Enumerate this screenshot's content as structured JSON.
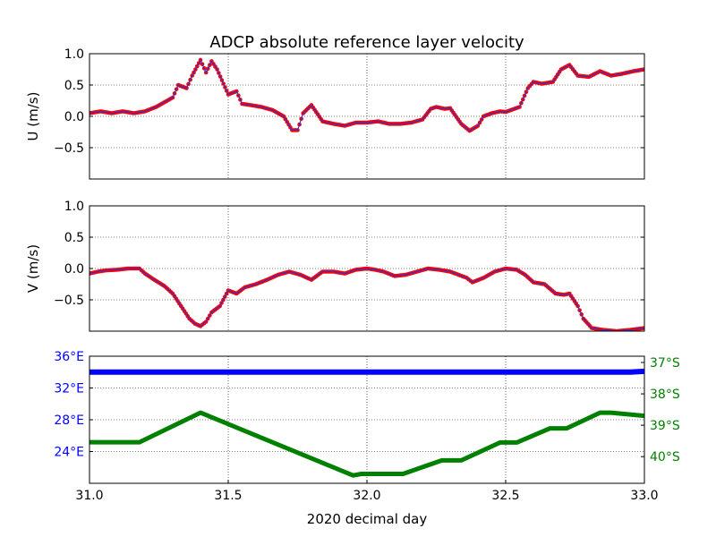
{
  "figure": {
    "title": "ADCP absolute reference layer velocity"
  },
  "chart_data": [
    {
      "id": "u_panel",
      "type": "scatter",
      "ylabel": "U (m/s)",
      "xlim": [
        31.0,
        33.0
      ],
      "ylim": [
        -1.0,
        1.0
      ],
      "yticks": [
        "1.0",
        "0.5",
        "0.0",
        "−0.5"
      ],
      "grid": true,
      "point_color": "#ff0000",
      "line_color": "#3333cc",
      "series": [
        {
          "x": [
            31.0,
            31.04,
            31.08,
            31.12,
            31.16,
            31.2,
            31.24,
            31.28,
            31.3,
            31.32,
            31.35,
            31.37,
            31.4,
            31.42,
            31.44,
            31.46,
            31.5,
            31.53,
            31.55,
            31.58,
            31.62,
            31.66,
            31.7,
            31.73,
            31.75,
            31.77,
            31.8,
            31.84,
            31.88,
            31.92,
            31.96,
            32.0,
            32.04,
            32.08,
            32.12,
            32.16,
            32.2,
            32.23,
            32.25,
            32.28,
            32.3,
            32.34,
            32.37,
            32.4,
            32.42,
            32.45,
            32.48,
            32.5,
            32.55,
            32.58,
            32.6,
            32.63,
            32.67,
            32.7,
            32.73,
            32.76,
            32.8,
            32.84,
            32.88,
            32.92,
            32.96,
            33.0
          ],
          "y": [
            0.05,
            0.08,
            0.05,
            0.08,
            0.05,
            0.08,
            0.15,
            0.25,
            0.3,
            0.5,
            0.45,
            0.65,
            0.9,
            0.7,
            0.88,
            0.75,
            0.35,
            0.4,
            0.2,
            0.18,
            0.15,
            0.1,
            0.0,
            -0.22,
            -0.22,
            0.05,
            0.18,
            -0.08,
            -0.12,
            -0.15,
            -0.1,
            -0.1,
            -0.08,
            -0.12,
            -0.12,
            -0.1,
            -0.05,
            0.12,
            0.15,
            0.12,
            0.13,
            -0.12,
            -0.23,
            -0.15,
            0.0,
            0.05,
            0.08,
            0.07,
            0.15,
            0.45,
            0.55,
            0.52,
            0.55,
            0.75,
            0.82,
            0.65,
            0.63,
            0.72,
            0.65,
            0.68,
            0.72,
            0.75
          ]
        }
      ]
    },
    {
      "id": "v_panel",
      "type": "scatter",
      "ylabel": "V (m/s)",
      "xlim": [
        31.0,
        33.0
      ],
      "ylim": [
        -1.0,
        1.0
      ],
      "yticks": [
        "1.0",
        "0.5",
        "0.0",
        "−0.5"
      ],
      "grid": true,
      "point_color": "#ff0000",
      "line_color": "#3333cc",
      "series": [
        {
          "x": [
            31.0,
            31.03,
            31.06,
            31.1,
            31.14,
            31.18,
            31.2,
            31.23,
            31.27,
            31.3,
            31.33,
            31.36,
            31.38,
            31.4,
            31.42,
            31.44,
            31.47,
            31.5,
            31.53,
            31.56,
            31.6,
            31.64,
            31.68,
            31.72,
            31.76,
            31.8,
            31.84,
            31.88,
            31.92,
            31.96,
            32.0,
            32.03,
            32.06,
            32.1,
            32.14,
            32.18,
            32.22,
            32.26,
            32.3,
            32.33,
            32.36,
            32.38,
            32.42,
            32.46,
            32.5,
            32.54,
            32.57,
            32.6,
            32.64,
            32.68,
            32.71,
            32.73,
            32.76,
            32.78,
            32.81,
            32.85,
            32.9,
            32.95,
            33.0
          ],
          "y": [
            -0.08,
            -0.05,
            -0.03,
            -0.02,
            0.0,
            0.0,
            -0.08,
            -0.17,
            -0.28,
            -0.4,
            -0.6,
            -0.8,
            -0.88,
            -0.92,
            -0.85,
            -0.7,
            -0.6,
            -0.35,
            -0.4,
            -0.3,
            -0.25,
            -0.18,
            -0.1,
            -0.05,
            -0.1,
            -0.18,
            -0.05,
            -0.05,
            -0.08,
            -0.02,
            0.0,
            -0.02,
            -0.05,
            -0.12,
            -0.1,
            -0.05,
            0.0,
            -0.02,
            -0.05,
            -0.1,
            -0.15,
            -0.22,
            -0.15,
            -0.05,
            0.0,
            -0.02,
            -0.1,
            -0.22,
            -0.25,
            -0.4,
            -0.42,
            -0.4,
            -0.6,
            -0.8,
            -0.95,
            -0.98,
            -1.0,
            -0.98,
            -0.95
          ]
        }
      ]
    },
    {
      "id": "position_panel",
      "type": "line",
      "xlabel": "2020 decimal day",
      "xlim": [
        31.0,
        33.0
      ],
      "xticks": [
        "31.0",
        "31.5",
        "32.0",
        "32.5",
        "33.0"
      ],
      "grid": true,
      "left_axis": {
        "color": "#0000ff",
        "ylim": [
          20.0,
          36.0
        ],
        "ticks": [
          {
            "v": 36,
            "label": "36°E"
          },
          {
            "v": 32,
            "label": "32°E"
          },
          {
            "v": 28,
            "label": "28°E"
          },
          {
            "v": 24,
            "label": "24°E"
          }
        ]
      },
      "right_axis": {
        "color": "#008000",
        "ylim": [
          -40.85,
          -36.8
        ],
        "ticks": [
          {
            "v": -37,
            "label": "37°S"
          },
          {
            "v": -38,
            "label": "38°S"
          },
          {
            "v": -39,
            "label": "39°S"
          },
          {
            "v": -40,
            "label": "40°S"
          }
        ]
      },
      "series": [
        {
          "axis": "left",
          "color": "#0000ff",
          "x": [
            31.0,
            32.95,
            33.0
          ],
          "y": [
            34.0,
            34.0,
            34.1
          ]
        },
        {
          "axis": "right",
          "color": "#008000",
          "x": [
            31.0,
            31.18,
            31.4,
            31.95,
            31.98,
            32.13,
            32.27,
            32.34,
            32.48,
            32.54,
            32.66,
            32.72,
            32.84,
            32.88,
            33.0
          ],
          "y": [
            -39.54,
            -39.54,
            -38.6,
            -40.6,
            -40.55,
            -40.55,
            -40.12,
            -40.12,
            -39.55,
            -39.55,
            -39.1,
            -39.1,
            -38.6,
            -38.6,
            -38.7
          ]
        }
      ]
    }
  ]
}
